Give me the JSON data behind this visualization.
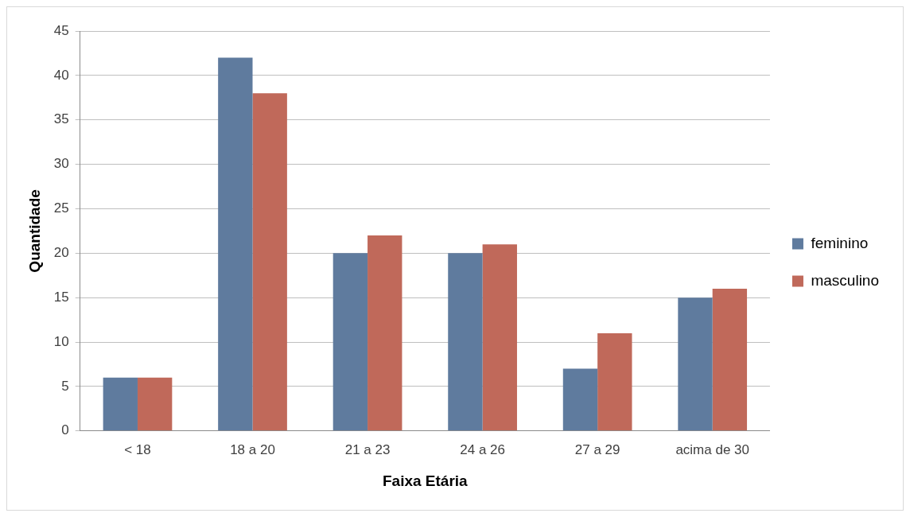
{
  "chart_data": {
    "type": "bar",
    "xlabel": "Faixa Etária",
    "ylabel": "Quantidade",
    "categories": [
      "< 18",
      "18 a 20",
      "21 a 23",
      "24 a 26",
      "27 a 29",
      "acima de 30"
    ],
    "series": [
      {
        "name": "feminino",
        "color": "#5f7b9e",
        "values": [
          6,
          42,
          20,
          20,
          7,
          15
        ]
      },
      {
        "name": "masculino",
        "color": "#c0695a",
        "values": [
          6,
          38,
          22,
          21,
          11,
          16
        ]
      }
    ],
    "ylim": [
      0,
      45
    ],
    "yticks": [
      0,
      5,
      10,
      15,
      20,
      25,
      30,
      35,
      40,
      45
    ],
    "grid": "y",
    "legend": "right"
  }
}
